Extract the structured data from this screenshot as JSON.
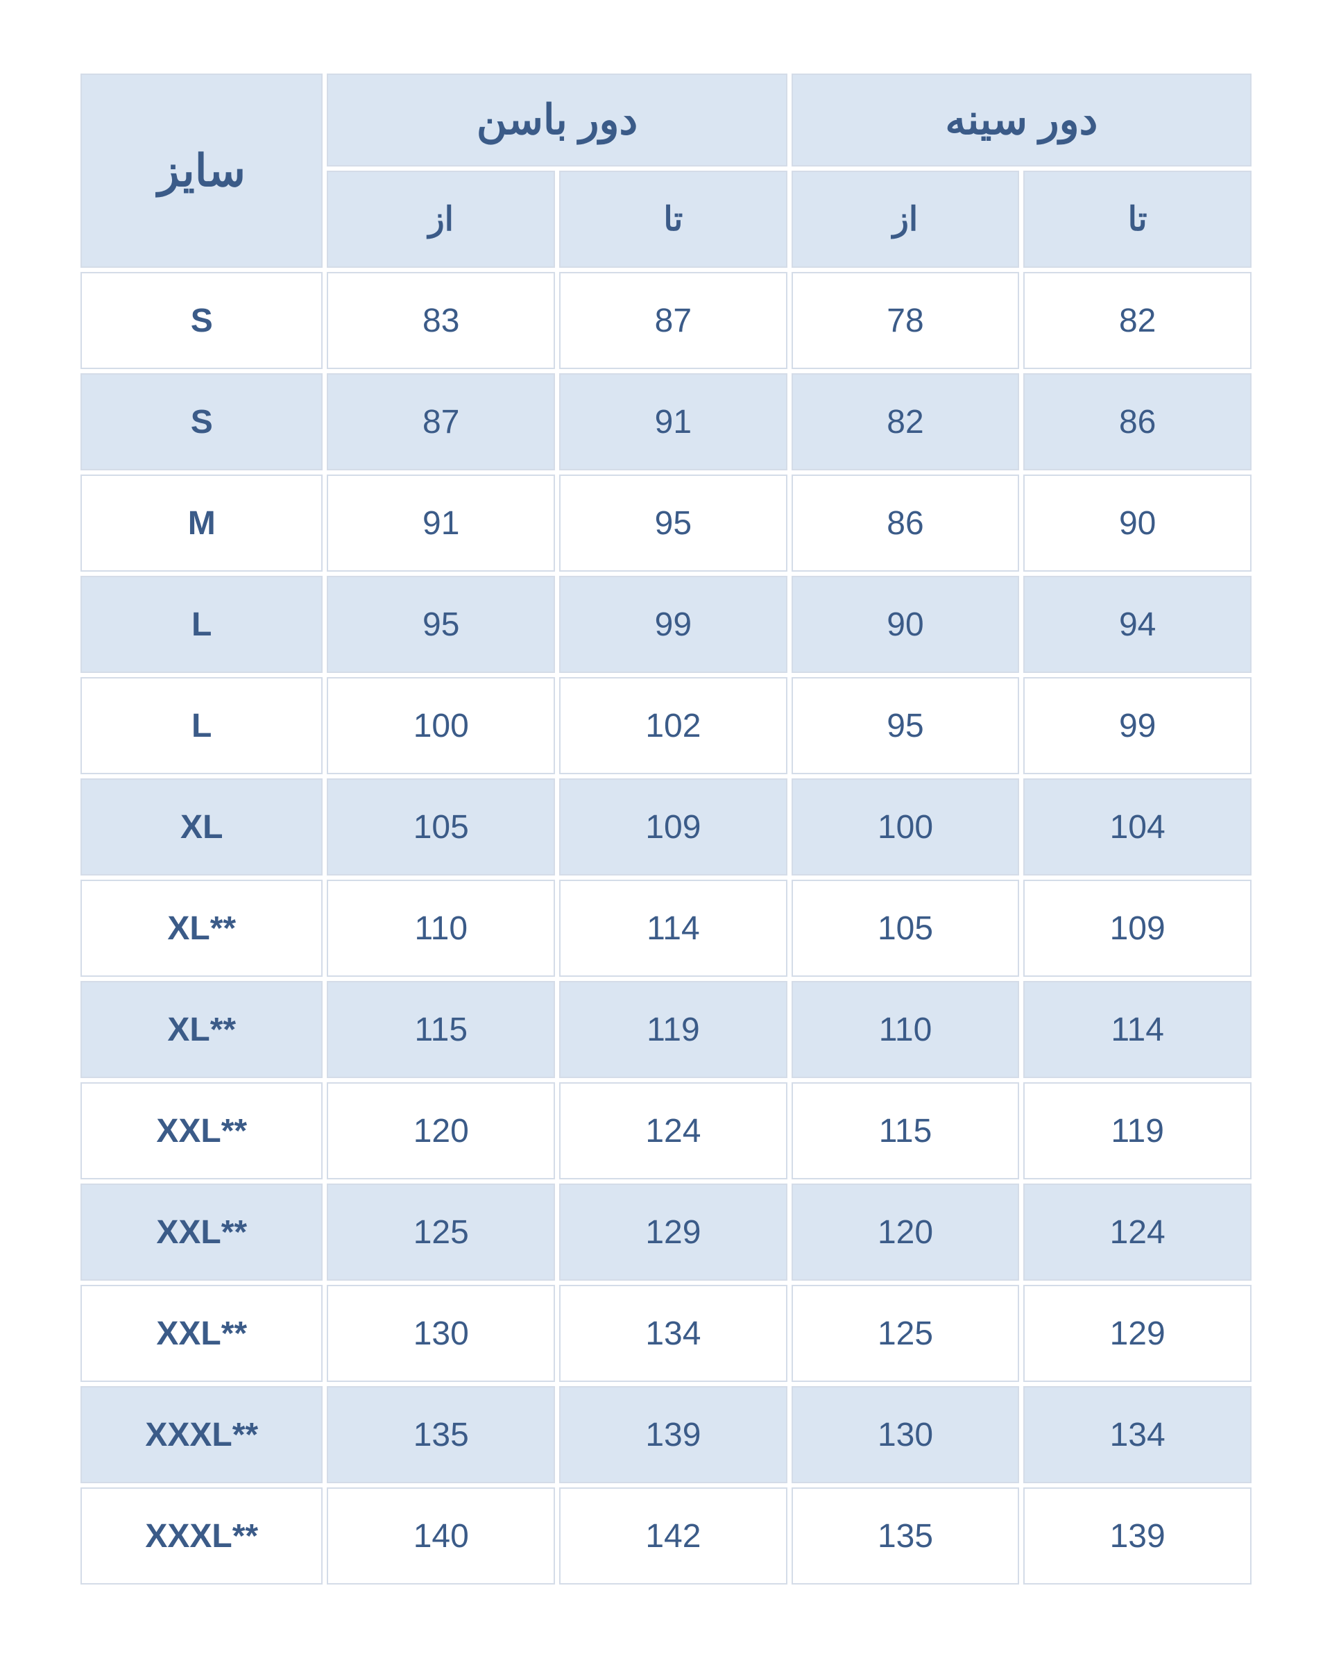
{
  "table": {
    "type": "table",
    "background_color": "#ffffff",
    "row_odd_bg": "#ffffff",
    "row_even_bg": "#dae5f2",
    "header_bg": "#dae5f2",
    "text_color": "#3b5b88",
    "border_color": "#d4dce8",
    "header_fontsize": 60,
    "subheader_fontsize": 48,
    "cell_fontsize": 48,
    "headers": {
      "size": "سایز",
      "hip": "دور باسن",
      "chest": "دور سینه",
      "from": "از",
      "to": "تا"
    },
    "rows": [
      {
        "size": "S",
        "hip_from": "83",
        "hip_to": "87",
        "chest_from": "78",
        "chest_to": "82"
      },
      {
        "size": "S",
        "hip_from": "87",
        "hip_to": "91",
        "chest_from": "82",
        "chest_to": "86"
      },
      {
        "size": "M",
        "hip_from": "91",
        "hip_to": "95",
        "chest_from": "86",
        "chest_to": "90"
      },
      {
        "size": "L",
        "hip_from": "95",
        "hip_to": "99",
        "chest_from": "90",
        "chest_to": "94"
      },
      {
        "size": "L",
        "hip_from": "100",
        "hip_to": "102",
        "chest_from": "95",
        "chest_to": "99"
      },
      {
        "size": "XL",
        "hip_from": "105",
        "hip_to": "109",
        "chest_from": "100",
        "chest_to": "104"
      },
      {
        "size": "XL**",
        "hip_from": "110",
        "hip_to": "114",
        "chest_from": "105",
        "chest_to": "109"
      },
      {
        "size": "XL**",
        "hip_from": "115",
        "hip_to": "119",
        "chest_from": "110",
        "chest_to": "114"
      },
      {
        "size": "XXL**",
        "hip_from": "120",
        "hip_to": "124",
        "chest_from": "115",
        "chest_to": "119"
      },
      {
        "size": "XXL**",
        "hip_from": "125",
        "hip_to": "129",
        "chest_from": "120",
        "chest_to": "124"
      },
      {
        "size": "XXL**",
        "hip_from": "130",
        "hip_to": "134",
        "chest_from": "125",
        "chest_to": "129"
      },
      {
        "size": "XXXL**",
        "hip_from": "135",
        "hip_to": "139",
        "chest_from": "130",
        "chest_to": "134"
      },
      {
        "size": "XXXL**",
        "hip_from": "140",
        "hip_to": "142",
        "chest_from": "135",
        "chest_to": "139"
      }
    ]
  }
}
